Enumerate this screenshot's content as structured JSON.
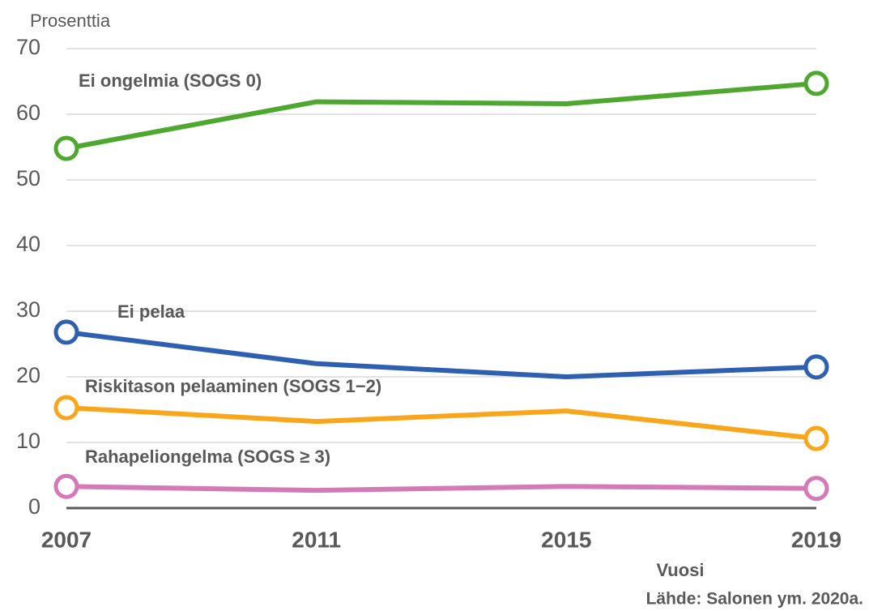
{
  "chart_data": {
    "type": "line",
    "y_label": "Prosenttia",
    "x_label": "Vuosi",
    "source": "Lähde: Salonen ym. 2020a.",
    "x": [
      2007,
      2011,
      2015,
      2019
    ],
    "xlim": [
      2007,
      2019
    ],
    "xticks": [
      2007,
      2011,
      2015,
      2019
    ],
    "ylim": [
      0,
      70
    ],
    "yticks": [
      0,
      10,
      20,
      30,
      40,
      50,
      60,
      70
    ],
    "grid": true,
    "series": [
      {
        "name": "Ei ongelmia (SOGS 0)",
        "color": "#4ea72e",
        "values": [
          54.8,
          61.9,
          61.6,
          64.7
        ]
      },
      {
        "name": "Ei pelaa",
        "color": "#2e5fb0",
        "values": [
          26.8,
          22.0,
          20.0,
          21.5
        ]
      },
      {
        "name": "Riskitason pelaaminen (SOGS 1−2)",
        "color": "#f9a61a",
        "values": [
          15.3,
          13.2,
          14.8,
          10.6
        ]
      },
      {
        "name": "Rahapeliongelma (SOGS ≥ 3)",
        "color": "#d47ab8",
        "values": [
          3.3,
          2.7,
          3.3,
          3.0
        ]
      }
    ]
  }
}
